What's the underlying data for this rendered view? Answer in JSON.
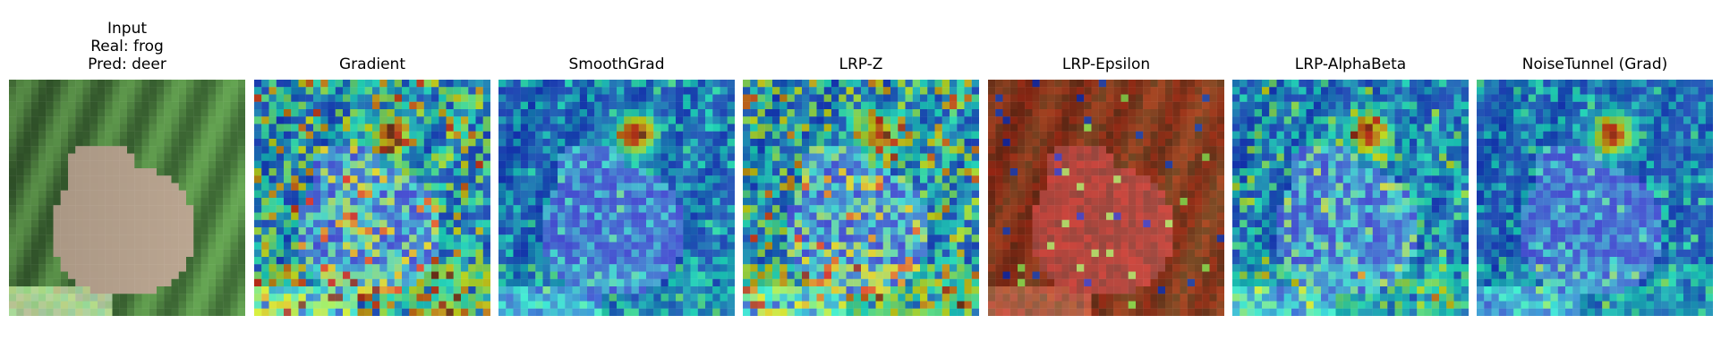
{
  "figure": {
    "panels": [
      {
        "id": "input",
        "title_lines": [
          "Input",
          "Real: frog",
          "Pred: deer"
        ],
        "type": "input"
      },
      {
        "id": "gradient",
        "title_lines": [
          "Gradient"
        ],
        "type": "heatmap",
        "intensity": 0.9
      },
      {
        "id": "smoothgrad",
        "title_lines": [
          "SmoothGrad"
        ],
        "type": "heatmap",
        "intensity": 0.35
      },
      {
        "id": "lrp-z",
        "title_lines": [
          "LRP-Z"
        ],
        "type": "heatmap",
        "intensity": 0.85
      },
      {
        "id": "lrp-epsilon",
        "title_lines": [
          "LRP-Epsilon"
        ],
        "type": "red"
      },
      {
        "id": "lrp-alphabeta",
        "title_lines": [
          "LRP-AlphaBeta"
        ],
        "type": "heatmap",
        "intensity": 0.55
      },
      {
        "id": "noisetunnel-grad",
        "title_lines": [
          "NoiseTunnel (Grad)"
        ],
        "type": "heatmap",
        "intensity": 0.35
      }
    ],
    "colormap": "jet",
    "input_colors": {
      "grass": "#5a8a4a",
      "frog": "#b5a48e",
      "dark": "#1e3a1a"
    }
  }
}
